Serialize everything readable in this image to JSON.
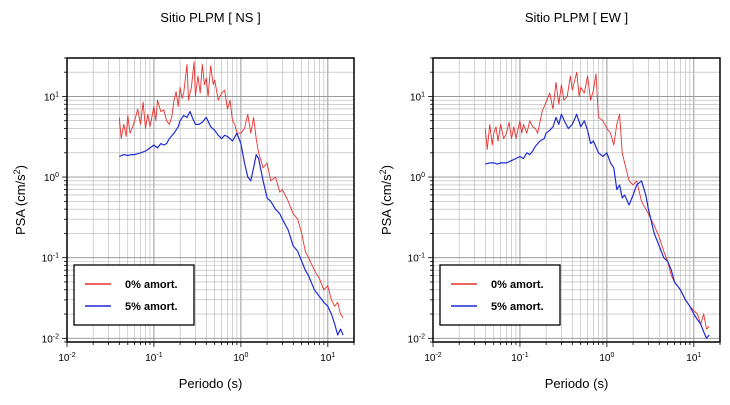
{
  "chart_data": [
    {
      "type": "line",
      "title": "Sitio PLPM [ NS ]",
      "xlabel": "Periodo (s)",
      "ylabel_main": "PSA (cm/s",
      "ylabel_sup": "2",
      "ylabel_end": ")",
      "xscale": "log",
      "yscale": "log",
      "xlim": [
        0.01,
        20
      ],
      "ylim": [
        0.009,
        30
      ],
      "grid": true,
      "legend_position": "lower-left",
      "x_ticks": [
        {
          "value": 0.01,
          "base": "10",
          "exp": "-2"
        },
        {
          "value": 0.1,
          "base": "10",
          "exp": "-1"
        },
        {
          "value": 1,
          "base": "10",
          "exp": "0"
        },
        {
          "value": 10,
          "base": "10",
          "exp": "1"
        }
      ],
      "y_ticks": [
        {
          "value": 0.01,
          "base": "10",
          "exp": "-2"
        },
        {
          "value": 0.1,
          "base": "10",
          "exp": "-1"
        },
        {
          "value": 1,
          "base": "10",
          "exp": "0"
        },
        {
          "value": 10,
          "base": "10",
          "exp": "1"
        }
      ],
      "series": [
        {
          "name": "0% amort.",
          "color": "#e8312f",
          "x": [
            0.04,
            0.042,
            0.045,
            0.048,
            0.05,
            0.053,
            0.056,
            0.06,
            0.065,
            0.07,
            0.075,
            0.08,
            0.085,
            0.09,
            0.1,
            0.105,
            0.11,
            0.12,
            0.13,
            0.14,
            0.15,
            0.16,
            0.17,
            0.18,
            0.19,
            0.2,
            0.21,
            0.22,
            0.24,
            0.25,
            0.27,
            0.29,
            0.3,
            0.32,
            0.34,
            0.36,
            0.38,
            0.4,
            0.42,
            0.45,
            0.48,
            0.5,
            0.55,
            0.6,
            0.65,
            0.7,
            0.75,
            0.8,
            0.85,
            0.9,
            1.0,
            1.1,
            1.2,
            1.3,
            1.4,
            1.5,
            1.6,
            1.8,
            2.0,
            2.2,
            2.5,
            2.8,
            3.0,
            3.5,
            4.0,
            4.5,
            5.0,
            5.5,
            6.0,
            7.0,
            8.0,
            9.0,
            10.0,
            11.0,
            12.0,
            13.0,
            14.0,
            15.0
          ],
          "y": [
            5.5,
            3.0,
            4.5,
            3.2,
            5.8,
            3.5,
            4.0,
            5.0,
            7.0,
            4.5,
            8.5,
            4.0,
            6.0,
            4.2,
            7.5,
            5.0,
            9.0,
            6.5,
            6.8,
            5.0,
            4.5,
            5.5,
            9.0,
            11.5,
            7.5,
            13.0,
            9.5,
            11.0,
            25.0,
            9.0,
            13.0,
            27.0,
            10.0,
            18.0,
            11.0,
            25.0,
            14.0,
            17.0,
            10.0,
            24.0,
            14.0,
            16.0,
            9.0,
            11.0,
            12.0,
            7.0,
            9.0,
            5.0,
            4.5,
            3.5,
            3.5,
            4.0,
            6.0,
            3.5,
            5.5,
            3.0,
            2.0,
            1.3,
            1.5,
            0.9,
            1.0,
            0.65,
            0.7,
            0.5,
            0.35,
            0.3,
            0.2,
            0.12,
            0.1,
            0.07,
            0.055,
            0.04,
            0.045,
            0.03,
            0.025,
            0.028,
            0.02,
            0.018
          ]
        },
        {
          "name": "5% amort.",
          "color": "#1f2bd6",
          "x": [
            0.04,
            0.045,
            0.05,
            0.055,
            0.06,
            0.07,
            0.08,
            0.09,
            0.1,
            0.11,
            0.12,
            0.13,
            0.14,
            0.15,
            0.17,
            0.19,
            0.2,
            0.22,
            0.24,
            0.26,
            0.28,
            0.3,
            0.33,
            0.36,
            0.4,
            0.45,
            0.5,
            0.55,
            0.6,
            0.65,
            0.7,
            0.8,
            0.9,
            1.0,
            1.1,
            1.2,
            1.3,
            1.4,
            1.5,
            1.6,
            1.8,
            2.0,
            2.2,
            2.5,
            2.8,
            3.0,
            3.5,
            4.0,
            4.5,
            5.0,
            5.5,
            6.0,
            7.0,
            8.0,
            9.0,
            10.0,
            11.0,
            12.0,
            13.0,
            14.0,
            15.0
          ],
          "y": [
            1.8,
            1.9,
            1.85,
            1.9,
            1.9,
            2.0,
            2.1,
            2.3,
            2.5,
            2.3,
            2.6,
            2.5,
            2.6,
            3.0,
            3.5,
            4.2,
            5.0,
            5.8,
            5.5,
            6.5,
            5.3,
            4.5,
            4.5,
            4.8,
            5.5,
            4.2,
            3.8,
            3.3,
            3.0,
            3.3,
            3.2,
            2.8,
            3.5,
            2.6,
            1.5,
            1.0,
            0.9,
            1.3,
            1.9,
            1.7,
            0.9,
            0.55,
            0.5,
            0.4,
            0.35,
            0.3,
            0.22,
            0.14,
            0.12,
            0.09,
            0.07,
            0.06,
            0.04,
            0.033,
            0.028,
            0.025,
            0.02,
            0.015,
            0.011,
            0.013,
            0.011
          ]
        }
      ]
    },
    {
      "type": "line",
      "title": "Sitio PLPM [ EW ]",
      "xlabel": "Periodo (s)",
      "ylabel_main": "PSA (cm/s",
      "ylabel_sup": "2",
      "ylabel_end": ")",
      "xscale": "log",
      "yscale": "log",
      "xlim": [
        0.01,
        20
      ],
      "ylim": [
        0.009,
        30
      ],
      "grid": true,
      "legend_position": "lower-left",
      "x_ticks": [
        {
          "value": 0.01,
          "base": "10",
          "exp": "-2"
        },
        {
          "value": 0.1,
          "base": "10",
          "exp": "-1"
        },
        {
          "value": 1,
          "base": "10",
          "exp": "0"
        },
        {
          "value": 10,
          "base": "10",
          "exp": "1"
        }
      ],
      "y_ticks": [
        {
          "value": 0.01,
          "base": "10",
          "exp": "-2"
        },
        {
          "value": 0.1,
          "base": "10",
          "exp": "-1"
        },
        {
          "value": 1,
          "base": "10",
          "exp": "0"
        },
        {
          "value": 10,
          "base": "10",
          "exp": "1"
        }
      ],
      "series": [
        {
          "name": "0% amort.",
          "color": "#e8312f",
          "x": [
            0.04,
            0.042,
            0.045,
            0.048,
            0.05,
            0.053,
            0.056,
            0.06,
            0.065,
            0.07,
            0.075,
            0.08,
            0.085,
            0.09,
            0.1,
            0.105,
            0.11,
            0.12,
            0.13,
            0.14,
            0.15,
            0.16,
            0.17,
            0.18,
            0.2,
            0.22,
            0.24,
            0.26,
            0.28,
            0.3,
            0.32,
            0.35,
            0.38,
            0.4,
            0.45,
            0.48,
            0.5,
            0.55,
            0.6,
            0.65,
            0.7,
            0.75,
            0.8,
            0.9,
            1.0,
            1.1,
            1.2,
            1.3,
            1.4,
            1.5,
            1.6,
            1.8,
            2.0,
            2.2,
            2.5,
            2.8,
            3.0,
            3.5,
            4.0,
            4.5,
            5.0,
            5.5,
            6.0,
            7.0,
            8.0,
            9.0,
            10.0,
            11.0,
            12.0,
            13.0,
            14.0,
            15.0
          ],
          "y": [
            4.0,
            2.2,
            4.5,
            2.5,
            3.5,
            4.2,
            2.8,
            4.5,
            3.0,
            3.5,
            4.8,
            3.0,
            4.2,
            3.0,
            5.0,
            3.5,
            4.5,
            3.5,
            5.0,
            4.2,
            4.0,
            3.5,
            4.8,
            6.5,
            8.5,
            11.0,
            7.0,
            15.0,
            8.0,
            14.0,
            9.0,
            10.0,
            18.0,
            12.0,
            20.0,
            10.0,
            13.0,
            11.0,
            18.0,
            9.0,
            12.0,
            19.0,
            5.5,
            5.0,
            4.0,
            3.5,
            2.5,
            4.5,
            6.0,
            2.0,
            1.5,
            0.9,
            0.8,
            0.9,
            0.5,
            0.4,
            0.35,
            0.25,
            0.18,
            0.12,
            0.09,
            0.06,
            0.05,
            0.04,
            0.03,
            0.025,
            0.022,
            0.02,
            0.015,
            0.02,
            0.013,
            0.014
          ]
        },
        {
          "name": "5% amort.",
          "color": "#1f2bd6",
          "x": [
            0.04,
            0.045,
            0.05,
            0.055,
            0.06,
            0.07,
            0.08,
            0.09,
            0.1,
            0.11,
            0.12,
            0.13,
            0.14,
            0.15,
            0.17,
            0.19,
            0.2,
            0.22,
            0.24,
            0.26,
            0.28,
            0.3,
            0.33,
            0.36,
            0.4,
            0.45,
            0.5,
            0.55,
            0.6,
            0.65,
            0.7,
            0.8,
            0.9,
            1.0,
            1.1,
            1.2,
            1.3,
            1.4,
            1.5,
            1.6,
            1.8,
            2.0,
            2.2,
            2.5,
            2.8,
            3.0,
            3.5,
            4.0,
            4.5,
            5.0,
            5.5,
            6.0,
            7.0,
            8.0,
            9.0,
            10.0,
            11.0,
            12.0,
            13.0,
            14.0,
            15.0
          ],
          "y": [
            1.45,
            1.5,
            1.5,
            1.45,
            1.5,
            1.5,
            1.6,
            1.7,
            1.8,
            1.7,
            2.0,
            1.9,
            2.1,
            2.4,
            2.8,
            3.0,
            3.5,
            3.8,
            4.2,
            5.5,
            4.5,
            6.0,
            4.8,
            4.0,
            4.5,
            6.0,
            4.2,
            5.0,
            3.8,
            2.6,
            2.8,
            2.0,
            1.8,
            2.0,
            1.5,
            1.3,
            0.7,
            0.8,
            0.55,
            0.6,
            0.45,
            0.6,
            0.8,
            0.9,
            0.6,
            0.4,
            0.2,
            0.14,
            0.1,
            0.09,
            0.07,
            0.05,
            0.04,
            0.03,
            0.025,
            0.02,
            0.017,
            0.015,
            0.012,
            0.01,
            0.011
          ]
        }
      ]
    }
  ]
}
